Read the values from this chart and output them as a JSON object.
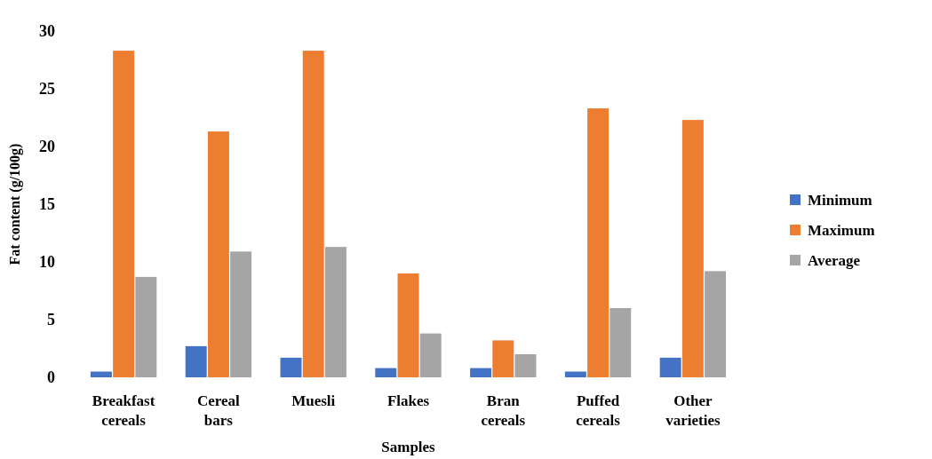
{
  "chart_data": {
    "type": "bar",
    "xlabel": "Samples",
    "ylabel": "Fat content  (g/100g)",
    "categories": [
      "Breakfast cereals",
      "Cereal bars",
      "Muesli",
      "Flakes",
      "Bran cereals",
      "Puffed cereals",
      "Other varieties"
    ],
    "series": [
      {
        "name": "Minimum",
        "color": "#4472c4",
        "values": [
          0.5,
          2.7,
          1.7,
          0.8,
          0.8,
          0.5,
          1.7
        ]
      },
      {
        "name": "Maximum",
        "color": "#ed7d31",
        "values": [
          28.3,
          21.3,
          28.3,
          9.0,
          3.2,
          23.3,
          22.3
        ]
      },
      {
        "name": "Average",
        "color": "#a5a5a5",
        "values": [
          8.7,
          10.9,
          11.3,
          3.8,
          2.0,
          6.0,
          9.2
        ]
      }
    ],
    "ylim": [
      0,
      30
    ],
    "yticks": [
      0,
      5,
      10,
      15,
      20,
      25,
      30
    ],
    "grid": false,
    "legend": "right"
  }
}
